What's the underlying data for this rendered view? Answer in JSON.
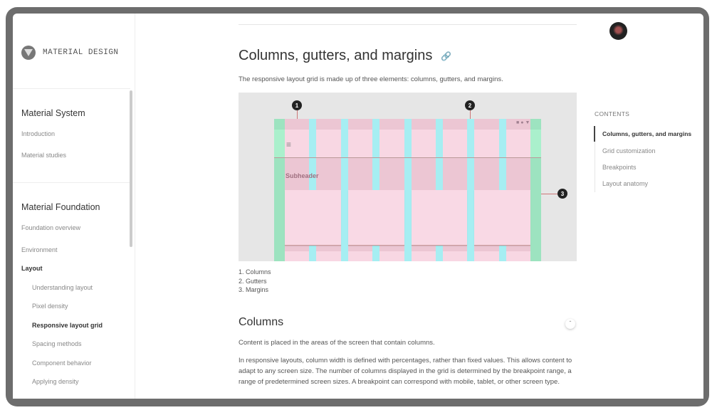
{
  "brand": {
    "name": "MATERIAL DESIGN"
  },
  "sidebar": {
    "sections": [
      {
        "title": "Material System",
        "items": [
          "Introduction",
          "Material studies"
        ]
      },
      {
        "title": "Material Foundation",
        "items": [
          "Foundation overview",
          "Environment"
        ]
      }
    ],
    "layout": {
      "label": "Layout",
      "items": [
        "Understanding layout",
        "Pixel density",
        "Responsive layout grid",
        "Spacing methods",
        "Component behavior",
        "Applying density"
      ],
      "active": "Responsive layout grid"
    }
  },
  "main": {
    "title": "Columns, gutters, and margins",
    "intro": "The responsive layout grid is made up of three elements: columns, gutters, and margins.",
    "diagram": {
      "markers": [
        "1",
        "2",
        "3"
      ],
      "subheader": "Subheader",
      "colors": {
        "column": "#f8d7e3",
        "gutter": "#a6eef2",
        "margin": "#9de3c0",
        "background": "#e6e6e6"
      }
    },
    "legend": [
      "1. Columns",
      "2. Gutters",
      "3. Margins"
    ],
    "section_title": "Columns",
    "para1": "Content is placed in the areas of the screen that contain columns.",
    "para2": "In responsive layouts, column width is defined with percentages, rather than fixed values. This allows content to adapt to any screen size. The number of columns displayed in the grid is determined by the breakpoint range, a range of predetermined screen sizes. A breakpoint can correspond with mobile, tablet, or other screen type."
  },
  "toc": {
    "title": "CONTENTS",
    "items": [
      "Columns, gutters, and margins",
      "Grid customization",
      "Breakpoints",
      "Layout anatomy"
    ]
  }
}
